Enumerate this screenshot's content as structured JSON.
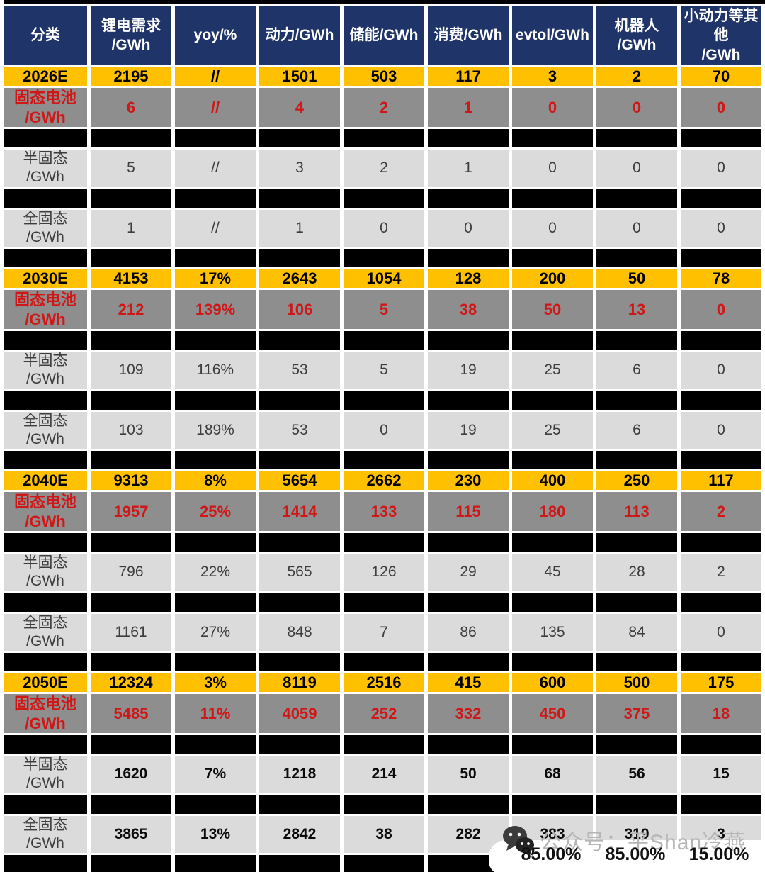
{
  "colors": {
    "header-bg": "#1f3468",
    "header-text": "#ffffff",
    "year-bg": "#ffc000",
    "year-text": "#000000",
    "solid-bg": "#8e8e8e",
    "solid-text": "#cf1717",
    "light-bg": "#dbdbdb",
    "light-text": "#3d3d3d",
    "spacer-bg": "#000000",
    "watermark-text": "#b5b5b5",
    "percent-text": "#111111"
  },
  "chart_data": {
    "type": "table",
    "title": "",
    "columns": [
      {
        "label": "分类"
      },
      {
        "label": "锂电需求\n/GWh"
      },
      {
        "label": "yoy/%"
      },
      {
        "label": "动力/GWh"
      },
      {
        "label": "储能/GWh"
      },
      {
        "label": "消费/GWh"
      },
      {
        "label": "evtol/GWh"
      },
      {
        "label": "机器人\n/GWh"
      },
      {
        "label": "小动力等其他\n/GWh"
      }
    ],
    "sections": [
      {
        "year": "2026E",
        "year_values": [
          "2195",
          "//",
          "1501",
          "503",
          "117",
          "3",
          "2",
          "70"
        ],
        "rows": [
          {
            "type": "solid",
            "label": "固态电池\n/GWh",
            "values": [
              "6",
              "//",
              "4",
              "2",
              "1",
              "0",
              "0",
              "0"
            ]
          },
          {
            "type": "semi",
            "label": "半固态\n/GWh",
            "values": [
              "5",
              "//",
              "3",
              "2",
              "1",
              "0",
              "0",
              "0"
            ]
          },
          {
            "type": "full",
            "label": "全固态\n/GWh",
            "values": [
              "1",
              "//",
              "1",
              "0",
              "0",
              "0",
              "0",
              "0"
            ]
          }
        ]
      },
      {
        "year": "2030E",
        "year_values": [
          "4153",
          "17%",
          "2643",
          "1054",
          "128",
          "200",
          "50",
          "78"
        ],
        "rows": [
          {
            "type": "solid",
            "label": "固态电池\n/GWh",
            "values": [
              "212",
              "139%",
              "106",
              "5",
              "38",
              "50",
              "13",
              "0"
            ]
          },
          {
            "type": "semi",
            "label": "半固态\n/GWh",
            "values": [
              "109",
              "116%",
              "53",
              "5",
              "19",
              "25",
              "6",
              "0"
            ]
          },
          {
            "type": "full",
            "label": "全固态\n/GWh",
            "values": [
              "103",
              "189%",
              "53",
              "0",
              "19",
              "25",
              "6",
              "0"
            ]
          }
        ]
      },
      {
        "year": "2040E",
        "year_values": [
          "9313",
          "8%",
          "5654",
          "2662",
          "230",
          "400",
          "250",
          "117"
        ],
        "rows": [
          {
            "type": "solid",
            "label": "固态电池\n/GWh",
            "values": [
              "1957",
              "25%",
              "1414",
              "133",
              "115",
              "180",
              "113",
              "2"
            ]
          },
          {
            "type": "semi",
            "label": "半固态\n/GWh",
            "values": [
              "796",
              "22%",
              "565",
              "126",
              "29",
              "45",
              "28",
              "2"
            ]
          },
          {
            "type": "full",
            "label": "全固态\n/GWh",
            "values": [
              "1161",
              "27%",
              "848",
              "7",
              "86",
              "135",
              "84",
              "0"
            ]
          }
        ]
      },
      {
        "year": "2050E",
        "emphasis": true,
        "year_values": [
          "12324",
          "3%",
          "8119",
          "2516",
          "415",
          "600",
          "500",
          "175"
        ],
        "rows": [
          {
            "type": "solid",
            "label": "固态电池\n/GWh",
            "values": [
              "5485",
              "11%",
              "4059",
              "252",
              "332",
              "450",
              "375",
              "18"
            ]
          },
          {
            "type": "semi",
            "label": "半固态\n/GWh",
            "values": [
              "1620",
              "7%",
              "1218",
              "214",
              "50",
              "68",
              "56",
              "15"
            ]
          },
          {
            "type": "full",
            "label": "全固态\n/GWh",
            "values": [
              "3865",
              "13%",
              "2842",
              "38",
              "282",
              "383",
              "319",
              "3"
            ]
          }
        ]
      }
    ]
  },
  "watermark": {
    "icon": "wechat-icon",
    "text": "公众号：平Shan冷燕",
    "percents": [
      "85.00%",
      "85.00%",
      "15.00%"
    ]
  }
}
